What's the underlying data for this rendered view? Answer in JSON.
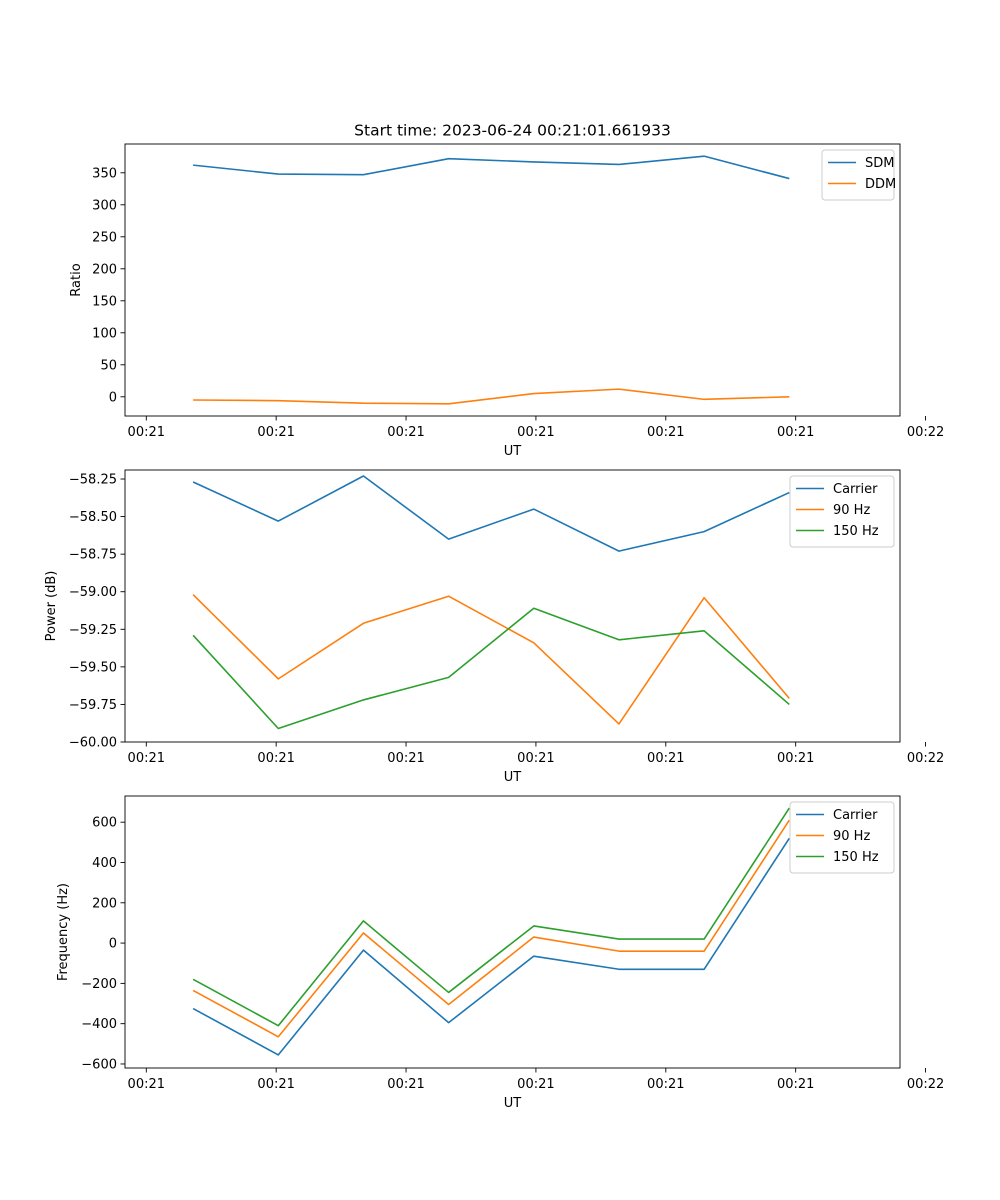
{
  "title": "Start time: 2023-06-24 00:21:01.661933",
  "colors": {
    "c0": "#1f77b4",
    "c1": "#ff7f0e",
    "c2": "#2ca02c"
  },
  "chart_data": [
    {
      "type": "line",
      "title": "Start time: 2023-06-24 00:21:01.661933",
      "xlabel": "UT",
      "ylabel": "Ratio",
      "x": [
        1,
        2,
        3,
        4,
        5,
        6,
        7,
        8
      ],
      "xlim": [
        0.2,
        9.3
      ],
      "xticks": [
        0.45,
        1.975,
        3.5,
        5.025,
        6.55,
        8.075,
        9.6
      ],
      "xtick_labels": [
        "00:21",
        "00:21",
        "00:21",
        "00:21",
        "00:21",
        "00:21",
        "00:22"
      ],
      "ylim": [
        -30,
        395
      ],
      "yticks": [
        0,
        50,
        100,
        150,
        200,
        250,
        300,
        350
      ],
      "ytick_labels": [
        "0",
        "50",
        "100",
        "150",
        "200",
        "250",
        "300",
        "350"
      ],
      "legend": "top-right",
      "grid": false,
      "series": [
        {
          "name": "SDM",
          "color": "#1f77b4",
          "values": [
            362,
            348,
            347,
            372,
            367,
            363,
            376,
            341
          ]
        },
        {
          "name": "DDM",
          "color": "#ff7f0e",
          "values": [
            -5,
            -6,
            -10,
            -11,
            5,
            12,
            -4,
            0
          ]
        }
      ]
    },
    {
      "type": "line",
      "xlabel": "UT",
      "ylabel": "Power (dB)",
      "x": [
        1,
        2,
        3,
        4,
        5,
        6,
        7,
        8
      ],
      "xlim": [
        0.2,
        9.3
      ],
      "xticks": [
        0.45,
        1.975,
        3.5,
        5.025,
        6.55,
        8.075,
        9.6
      ],
      "xtick_labels": [
        "00:21",
        "00:21",
        "00:21",
        "00:21",
        "00:21",
        "00:21",
        "00:22"
      ],
      "ylim": [
        -60.0,
        -58.19
      ],
      "yticks": [
        -60.0,
        -59.75,
        -59.5,
        -59.25,
        -59.0,
        -58.75,
        -58.5,
        -58.25
      ],
      "ytick_labels": [
        "−60.00",
        "−59.75",
        "−59.50",
        "−59.25",
        "−59.00",
        "−58.75",
        "−58.50",
        "−58.25"
      ],
      "legend": "top-right",
      "grid": false,
      "series": [
        {
          "name": "Carrier",
          "color": "#1f77b4",
          "values": [
            -58.27,
            -58.53,
            -58.23,
            -58.65,
            -58.45,
            -58.73,
            -58.6,
            -58.34
          ]
        },
        {
          "name": "90 Hz",
          "color": "#ff7f0e",
          "values": [
            -59.02,
            -59.58,
            -59.21,
            -59.03,
            -59.34,
            -59.88,
            -59.04,
            -59.71
          ]
        },
        {
          "name": "150 Hz",
          "color": "#2ca02c",
          "values": [
            -59.29,
            -59.91,
            -59.72,
            -59.57,
            -59.11,
            -59.32,
            -59.26,
            -59.75
          ]
        }
      ]
    },
    {
      "type": "line",
      "xlabel": "UT",
      "ylabel": "Frequency (Hz)",
      "x": [
        1,
        2,
        3,
        4,
        5,
        6,
        7,
        8
      ],
      "xlim": [
        0.2,
        9.3
      ],
      "xticks": [
        0.45,
        1.975,
        3.5,
        5.025,
        6.55,
        8.075,
        9.6
      ],
      "xtick_labels": [
        "00:21",
        "00:21",
        "00:21",
        "00:21",
        "00:21",
        "00:21",
        "00:22"
      ],
      "ylim": [
        -620,
        730
      ],
      "yticks": [
        -600,
        -400,
        -200,
        0,
        200,
        400,
        600
      ],
      "ytick_labels": [
        "−600",
        "−400",
        "−200",
        "0",
        "200",
        "400",
        "600"
      ],
      "legend": "top-right",
      "grid": false,
      "series": [
        {
          "name": "Carrier",
          "color": "#1f77b4",
          "values": [
            -325,
            -555,
            -35,
            -395,
            -65,
            -130,
            -130,
            520
          ]
        },
        {
          "name": "90 Hz",
          "color": "#ff7f0e",
          "values": [
            -235,
            -465,
            50,
            -305,
            30,
            -40,
            -40,
            610
          ]
        },
        {
          "name": "150 Hz",
          "color": "#2ca02c",
          "values": [
            -180,
            -410,
            110,
            -245,
            85,
            20,
            20,
            670
          ]
        }
      ]
    }
  ]
}
